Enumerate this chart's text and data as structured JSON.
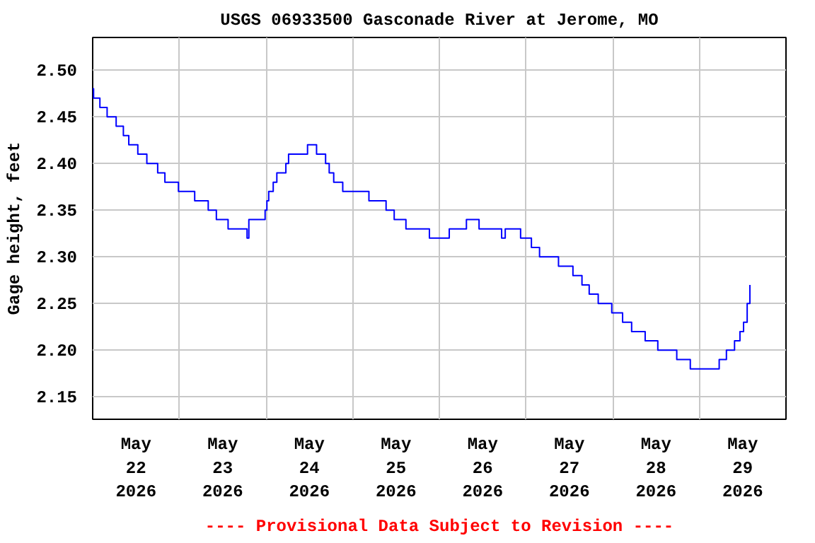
{
  "chart_data": {
    "type": "step",
    "title": "USGS 06933500 Gasconade River at Jerome, MO",
    "ylabel": "Gage height, feet",
    "annotations": [
      "---- Provisional Data Subject to Revision ----"
    ],
    "x": [
      "2026-05-22T00:00",
      "2026-05-22T00:15",
      "2026-05-22T02:00",
      "2026-05-22T04:00",
      "2026-05-22T06:30",
      "2026-05-22T08:30",
      "2026-05-22T10:00",
      "2026-05-22T12:30",
      "2026-05-22T15:00",
      "2026-05-22T18:00",
      "2026-05-22T20:00",
      "2026-05-22T23:45",
      "2026-05-23T04:15",
      "2026-05-23T08:00",
      "2026-05-23T10:15",
      "2026-05-23T13:30",
      "2026-05-23T18:45",
      "2026-05-23T19:15",
      "2026-05-23T23:45",
      "2026-05-24T00:15",
      "2026-05-24T00:45",
      "2026-05-24T02:00",
      "2026-05-24T03:00",
      "2026-05-24T05:30",
      "2026-05-24T06:15",
      "2026-05-24T11:30",
      "2026-05-24T14:00",
      "2026-05-24T16:30",
      "2026-05-24T17:30",
      "2026-05-24T18:45",
      "2026-05-24T21:15",
      "2026-05-25T04:30",
      "2026-05-25T09:15",
      "2026-05-25T11:30",
      "2026-05-25T14:45",
      "2026-05-25T21:15",
      "2026-05-26T02:45",
      "2026-05-26T07:30",
      "2026-05-26T11:00",
      "2026-05-26T17:15",
      "2026-05-26T18:15",
      "2026-05-26T22:30",
      "2026-05-27T01:30",
      "2026-05-27T03:45",
      "2026-05-27T09:00",
      "2026-05-27T13:00",
      "2026-05-27T15:30",
      "2026-05-27T17:30",
      "2026-05-27T20:00",
      "2026-05-27T23:45",
      "2026-05-28T02:45",
      "2026-05-28T05:15",
      "2026-05-28T09:00",
      "2026-05-28T12:30",
      "2026-05-28T17:45",
      "2026-05-28T21:30",
      "2026-05-29T05:30",
      "2026-05-29T07:30",
      "2026-05-29T09:45",
      "2026-05-29T11:15",
      "2026-05-29T12:15",
      "2026-05-29T13:15",
      "2026-05-29T14:00"
    ],
    "series": [
      {
        "color": "#0000ff",
        "values": [
          2.48,
          2.47,
          2.46,
          2.45,
          2.44,
          2.43,
          2.42,
          2.41,
          2.4,
          2.39,
          2.38,
          2.37,
          2.36,
          2.35,
          2.34,
          2.33,
          2.32,
          2.34,
          2.35,
          2.36,
          2.37,
          2.38,
          2.39,
          2.4,
          2.41,
          2.42,
          2.41,
          2.4,
          2.39,
          2.38,
          2.37,
          2.36,
          2.35,
          2.34,
          2.33,
          2.32,
          2.33,
          2.34,
          2.33,
          2.32,
          2.33,
          2.32,
          2.31,
          2.3,
          2.29,
          2.28,
          2.27,
          2.26,
          2.25,
          2.24,
          2.23,
          2.22,
          2.21,
          2.2,
          2.19,
          2.18,
          2.19,
          2.2,
          2.21,
          2.22,
          2.23,
          2.25,
          2.27
        ]
      }
    ],
    "xlim": [
      "2026-05-22T00:00",
      "2026-05-30T00:00"
    ],
    "xticks": [
      {
        "value": "2026-05-22T12:00",
        "label": "May\n22\n2026"
      },
      {
        "value": "2026-05-23T12:00",
        "label": "May\n23\n2026"
      },
      {
        "value": "2026-05-24T12:00",
        "label": "May\n24\n2026"
      },
      {
        "value": "2026-05-25T12:00",
        "label": "May\n25\n2026"
      },
      {
        "value": "2026-05-26T12:00",
        "label": "May\n26\n2026"
      },
      {
        "value": "2026-05-27T12:00",
        "label": "May\n27\n2026"
      },
      {
        "value": "2026-05-28T12:00",
        "label": "May\n28\n2026"
      },
      {
        "value": "2026-05-29T12:00",
        "label": "May\n29\n2026"
      },
      {
        "value": "2026-05-23T00:00",
        "label": null
      },
      {
        "value": "2026-05-24T00:00",
        "label": null
      },
      {
        "value": "2026-05-25T00:00",
        "label": null
      },
      {
        "value": "2026-05-26T00:00",
        "label": null
      },
      {
        "value": "2026-05-27T00:00",
        "label": null
      },
      {
        "value": "2026-05-28T00:00",
        "label": null
      },
      {
        "value": "2026-05-29T00:00",
        "label": null
      }
    ],
    "ylim": [
      2.126,
      2.535
    ],
    "yticks": [
      {
        "value": 2.15,
        "label": "2.15"
      },
      {
        "value": 2.2,
        "label": "2.20"
      },
      {
        "value": 2.25,
        "label": "2.25"
      },
      {
        "value": 2.3,
        "label": "2.30"
      },
      {
        "value": 2.35,
        "label": "2.35"
      },
      {
        "value": 2.4,
        "label": "2.40"
      },
      {
        "value": 2.45,
        "label": "2.45"
      },
      {
        "value": 2.5,
        "label": "2.50"
      }
    ],
    "grid": true,
    "line_style": "solid"
  }
}
